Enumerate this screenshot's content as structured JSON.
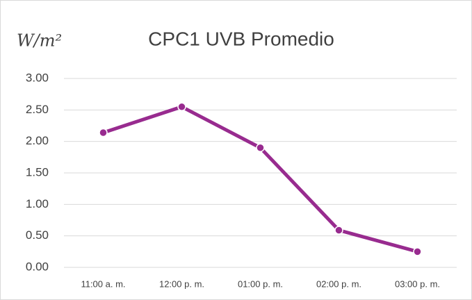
{
  "chart_data": {
    "type": "line",
    "title": "CPC1 UVB Promedio",
    "y_label": "W/m²",
    "categories": [
      "11:00 a. m.",
      "12:00 p. m.",
      "01:00 p. m.",
      "02:00 p. m.",
      "03:00 p. m."
    ],
    "series": [
      {
        "name": "CPC1 UVB Promedio",
        "color": "#982b8f",
        "values": [
          2.14,
          2.55,
          1.9,
          0.59,
          0.25
        ]
      }
    ],
    "ylim": [
      0,
      3
    ],
    "yticks": [
      {
        "value": 0,
        "label": "0.00"
      },
      {
        "value": 0.5,
        "label": "0.50"
      },
      {
        "value": 1,
        "label": "1.00"
      },
      {
        "value": 1.5,
        "label": "1.50"
      },
      {
        "value": 2,
        "label": "2.00"
      },
      {
        "value": 2.5,
        "label": "2.50"
      },
      {
        "value": 3,
        "label": "3.00"
      }
    ],
    "grid": true
  }
}
